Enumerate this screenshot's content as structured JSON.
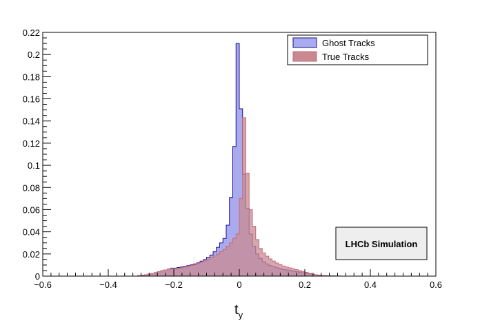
{
  "chart_data": {
    "type": "area",
    "title": "",
    "xlabel": "t",
    "xlabel_subscript": "y",
    "ylabel": "",
    "xlim": [
      -0.6,
      0.6
    ],
    "ylim": [
      0,
      0.22
    ],
    "x_ticks": [
      "−0.6",
      "−0.4",
      "−0.2",
      "0",
      "0.2",
      "0.4",
      "0.6"
    ],
    "y_ticks": [
      "0",
      "0.02",
      "0.04",
      "0.06",
      "0.08",
      "0.1",
      "0.12",
      "0.14",
      "0.16",
      "0.18",
      "0.2",
      "0.22"
    ],
    "bin_width": 0.01,
    "legend_position": "top-right",
    "grid": false,
    "series": [
      {
        "name": "Ghost Tracks",
        "fill": "#aaaaee",
        "line": "#1a0f8c",
        "x_start": -0.31,
        "values": [
          0.0005,
          0.0008,
          0.0012,
          0.0018,
          0.0025,
          0.0032,
          0.004,
          0.0048,
          0.0056,
          0.0064,
          0.0072,
          0.0072,
          0.0078,
          0.0082,
          0.0088,
          0.0095,
          0.0102,
          0.011,
          0.012,
          0.0135,
          0.015,
          0.017,
          0.019,
          0.022,
          0.026,
          0.03,
          0.034,
          0.046,
          0.071,
          0.117,
          0.21,
          0.151,
          0.092,
          0.061,
          0.038,
          0.027,
          0.02,
          0.016,
          0.013,
          0.011,
          0.0095,
          0.0085,
          0.0075,
          0.0068,
          0.006,
          0.0055,
          0.005,
          0.0045,
          0.004,
          0.0036,
          0.003,
          0.0025,
          0.002,
          0.0015,
          0.001,
          0.0008,
          0.0006,
          0.0004,
          0.0003,
          0.0002,
          0.0001,
          0.0001
        ]
      },
      {
        "name": "True Tracks",
        "fill": "#c88a90",
        "line": "#c86a74",
        "x_start": -0.31,
        "values": [
          0.0005,
          0.0008,
          0.0012,
          0.0018,
          0.0025,
          0.0032,
          0.004,
          0.0048,
          0.0056,
          0.0062,
          0.0068,
          0.0068,
          0.0072,
          0.0076,
          0.0082,
          0.0088,
          0.0096,
          0.0104,
          0.0114,
          0.0125,
          0.0138,
          0.015,
          0.0165,
          0.0182,
          0.02,
          0.022,
          0.024,
          0.027,
          0.03,
          0.034,
          0.038,
          0.07,
          0.143,
          0.093,
          0.06,
          0.045,
          0.033,
          0.025,
          0.021,
          0.018,
          0.0155,
          0.0135,
          0.0118,
          0.0105,
          0.0092,
          0.0082,
          0.0074,
          0.0066,
          0.0058,
          0.005,
          0.0042,
          0.0034,
          0.0026,
          0.0018,
          0.0012,
          0.0008,
          0.0006,
          0.0004,
          0.0003,
          0.0002,
          0.0001,
          0.0001
        ]
      }
    ],
    "legend_entries": [
      "Ghost Tracks",
      "True Tracks"
    ],
    "annotation": "LHCb Simulation"
  }
}
